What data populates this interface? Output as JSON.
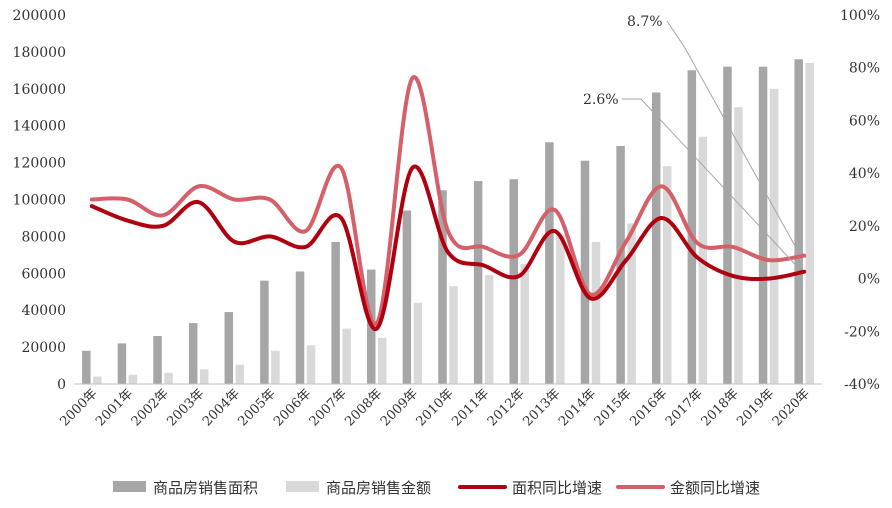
{
  "chart_data": {
    "type": "bar+line",
    "title": "",
    "categories": [
      "2000年",
      "2001年",
      "2002年",
      "2003年",
      "2004年",
      "2005年",
      "2006年",
      "2007年",
      "2008年",
      "2009年",
      "2010年",
      "2011年",
      "2012年",
      "2013年",
      "2014年",
      "2015年",
      "2016年",
      "2017年",
      "2018年",
      "2019年",
      "2020年"
    ],
    "left_axis": {
      "ylim": [
        0,
        200000
      ],
      "ticks": [
        "0",
        "20000",
        "40000",
        "60000",
        "80000",
        "100000",
        "120000",
        "140000",
        "160000",
        "180000",
        "200000"
      ]
    },
    "right_axis": {
      "ylim": [
        -40,
        100
      ],
      "ticks": [
        "-40%",
        "-20%",
        "0%",
        "20%",
        "40%",
        "60%",
        "80%",
        "100%"
      ]
    },
    "series": [
      {
        "name": "商品房销售面积",
        "type": "bar",
        "axis": "left",
        "color": "#a6a6a6",
        "values": [
          18000,
          22000,
          26000,
          33000,
          39000,
          56000,
          61000,
          77000,
          62000,
          94000,
          105000,
          110000,
          111000,
          131000,
          121000,
          129000,
          158000,
          170000,
          172000,
          172000,
          176000
        ]
      },
      {
        "name": "商品房销售金额",
        "type": "bar",
        "axis": "left",
        "color": "#d9d9d9",
        "values": [
          4000,
          5000,
          6000,
          8000,
          10500,
          18000,
          21000,
          30000,
          25000,
          44000,
          53000,
          59000,
          65000,
          81000,
          77000,
          87000,
          118000,
          134000,
          150000,
          160000,
          174000
        ]
      },
      {
        "name": "面积同比增速",
        "type": "line",
        "axis": "right",
        "color": "#b0000f",
        "values": [
          27.5,
          22,
          20,
          29,
          14,
          16,
          12,
          23,
          -19,
          42,
          10,
          5,
          1,
          18,
          -7.5,
          7,
          23,
          8,
          1,
          0,
          2.6
        ]
      },
      {
        "name": "金额同比增速",
        "type": "line",
        "axis": "right",
        "color": "#d4606a",
        "values": [
          30,
          30,
          24,
          35,
          30,
          30,
          18,
          42,
          -17,
          76,
          18,
          12,
          9,
          26,
          -6,
          14,
          35,
          13.5,
          12,
          7,
          8.7
        ]
      }
    ],
    "annotations": [
      {
        "text": "8.7%",
        "series": "金额同比增速",
        "category": "2020年"
      },
      {
        "text": "2.6%",
        "series": "面积同比增速",
        "category": "2020年"
      }
    ],
    "grid": false,
    "legend_position": "bottom"
  }
}
